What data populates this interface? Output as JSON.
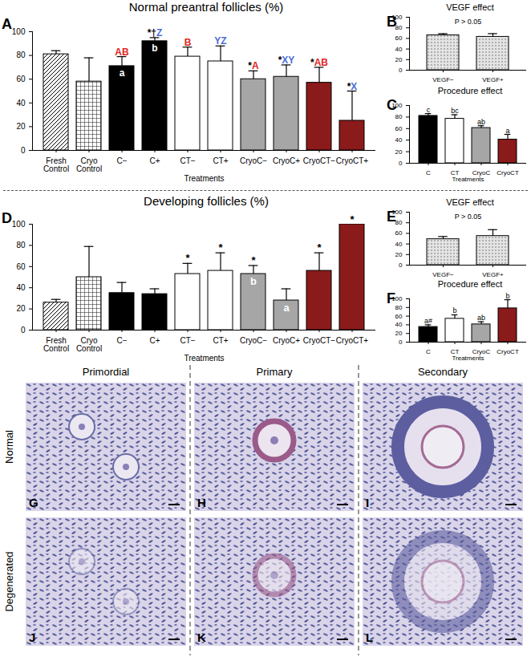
{
  "chart_data": [
    {
      "panel": "A",
      "type": "bar",
      "title": "Normal preantral follicles (%)",
      "x_label": "Treatments",
      "categories": [
        "Fresh Control",
        "Cryo Control",
        "C−",
        "C+",
        "CT−",
        "CT+",
        "CryoC−",
        "CryoC+",
        "CryoCT−",
        "CryoCT+"
      ],
      "values": [
        81,
        58,
        71,
        92,
        79,
        75,
        60,
        62,
        57,
        25
      ],
      "errors": [
        3,
        20,
        8,
        3,
        8,
        13,
        7,
        10,
        13,
        25
      ],
      "colors": [
        "hatch",
        "grid",
        "#000000",
        "#000000",
        "#ffffff",
        "#ffffff",
        "#a6a6a6",
        "#a6a6a6",
        "#8b1a1a",
        "#8b1a1a"
      ],
      "labels_above": [
        null,
        null,
        [
          {
            "text": "AB",
            "color": "#e0261f"
          }
        ],
        [
          {
            "text": "*†",
            "color": "#000000"
          },
          {
            "text": "Z",
            "color": "#4a6fd6"
          }
        ],
        [
          {
            "text": "B",
            "color": "#e0261f"
          }
        ],
        [
          {
            "text": "YZ",
            "color": "#4a6fd6"
          }
        ],
        [
          {
            "text": "*",
            "color": "#000000"
          },
          {
            "text": "A",
            "color": "#e0261f"
          }
        ],
        [
          {
            "text": "*",
            "color": "#000000"
          },
          {
            "text": "XY",
            "color": "#4a6fd6"
          }
        ],
        [
          {
            "text": "*",
            "color": "#000000"
          },
          {
            "text": "AB",
            "color": "#e0261f"
          }
        ],
        [
          {
            "text": "*",
            "color": "#000000"
          },
          {
            "text": "X",
            "color": "#4a6fd6"
          }
        ]
      ],
      "labels_inside": [
        null,
        null,
        "a",
        "b",
        null,
        null,
        null,
        null,
        null,
        null
      ],
      "ylim": [
        0,
        100
      ],
      "yticks": [
        0,
        20,
        40,
        60,
        80,
        100
      ]
    },
    {
      "panel": "B",
      "type": "bar",
      "title": "VEGF effect",
      "annotation": "P > 0.05",
      "categories": [
        "VEGF−",
        "VEGF+"
      ],
      "values": [
        66,
        63
      ],
      "errors": [
        3,
        6
      ],
      "colors": [
        "dots",
        "dots"
      ],
      "ylim": [
        0,
        100
      ],
      "yticks": [
        0,
        20,
        40,
        60,
        80,
        100
      ]
    },
    {
      "panel": "C",
      "type": "bar",
      "title": "Procedure effect",
      "x_label": "Treatments",
      "categories": [
        "C",
        "CT",
        "CryoC",
        "CryoCT"
      ],
      "values": [
        82,
        77,
        61,
        41
      ],
      "errors": [
        4,
        7,
        4,
        9
      ],
      "colors": [
        "#000000",
        "#ffffff",
        "#a6a6a6",
        "#8b1a1a"
      ],
      "labels_above": [
        [
          {
            "text": "c",
            "color": "#000000"
          }
        ],
        [
          {
            "text": "bc",
            "color": "#000000"
          }
        ],
        [
          {
            "text": "ab",
            "color": "#000000"
          }
        ],
        [
          {
            "text": "a",
            "color": "#000000"
          }
        ]
      ],
      "ylim": [
        0,
        100
      ],
      "yticks": [
        0,
        20,
        40,
        60,
        80,
        100
      ]
    },
    {
      "panel": "D",
      "type": "bar",
      "title": "Developing follicles (%)",
      "x_label": "Treatments",
      "categories": [
        "Fresh Control",
        "Cryo Control",
        "C−",
        "C+",
        "CT−",
        "CT+",
        "CryoC−",
        "CryoC+",
        "CryoCT−",
        "CryoCT+"
      ],
      "values": [
        26,
        50,
        35,
        34,
        53,
        56,
        53,
        28,
        56,
        100
      ],
      "errors": [
        3,
        29,
        10,
        5,
        10,
        17,
        8,
        11,
        17,
        0
      ],
      "colors": [
        "hatch",
        "grid",
        "#000000",
        "#000000",
        "#ffffff",
        "#ffffff",
        "#a6a6a6",
        "#a6a6a6",
        "#8b1a1a",
        "#8b1a1a"
      ],
      "labels_above": [
        null,
        null,
        null,
        null,
        [
          {
            "text": "*",
            "color": "#000000"
          }
        ],
        [
          {
            "text": "*",
            "color": "#000000"
          }
        ],
        [
          {
            "text": "*",
            "color": "#000000"
          }
        ],
        null,
        [
          {
            "text": "*",
            "color": "#000000"
          }
        ],
        [
          {
            "text": "*",
            "color": "#000000"
          }
        ]
      ],
      "labels_inside": [
        null,
        null,
        null,
        null,
        null,
        null,
        "b",
        "a",
        null,
        null
      ],
      "ylim": [
        0,
        100
      ],
      "yticks": [
        0,
        20,
        40,
        60,
        80,
        100
      ]
    },
    {
      "panel": "E",
      "type": "bar",
      "title": "VEGF effect",
      "annotation": "P > 0.05",
      "categories": [
        "VEGF−",
        "VEGF+"
      ],
      "values": [
        49,
        55
      ],
      "errors": [
        5,
        12
      ],
      "colors": [
        "dots",
        "dots"
      ],
      "ylim": [
        0,
        100
      ],
      "yticks": [
        0,
        20,
        40,
        60,
        80,
        100
      ]
    },
    {
      "panel": "F",
      "type": "bar",
      "title": "Procedure effect",
      "x_label": "Treatments",
      "categories": [
        "C",
        "CT",
        "CryoC",
        "CryoCT"
      ],
      "values": [
        35,
        54,
        41,
        78
      ],
      "errors": [
        5,
        9,
        6,
        20
      ],
      "colors": [
        "#000000",
        "#ffffff",
        "#a6a6a6",
        "#8b1a1a"
      ],
      "labels_above": [
        [
          {
            "text": "a#",
            "color": "#000000"
          }
        ],
        [
          {
            "text": "b",
            "color": "#000000"
          }
        ],
        [
          {
            "text": "ab",
            "color": "#000000"
          }
        ],
        [
          {
            "text": "b",
            "color": "#000000"
          }
        ]
      ],
      "ylim": [
        0,
        100
      ],
      "yticks": [
        0,
        20,
        40,
        60,
        80,
        100
      ]
    }
  ],
  "image_grid": {
    "columns": [
      "Primordial",
      "Primary",
      "Secondary"
    ],
    "rows": [
      "Normal",
      "Degenerated"
    ],
    "panels": [
      [
        "G",
        "H",
        "I"
      ],
      [
        "J",
        "K",
        "L"
      ]
    ]
  }
}
